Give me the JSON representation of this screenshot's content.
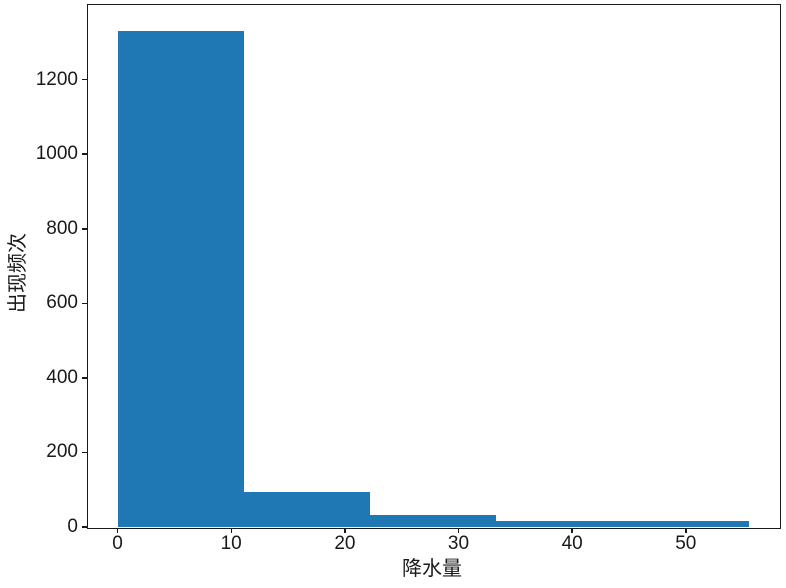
{
  "chart_data": {
    "type": "bar",
    "subtype": "histogram",
    "title": "",
    "xlabel": "降水量",
    "ylabel": "出现频次",
    "bin_edges": [
      0,
      11.11,
      22.22,
      33.33,
      44.44,
      55.56
    ],
    "values": [
      1330,
      95,
      33,
      16,
      16
    ],
    "xticks": [
      0,
      10,
      20,
      30,
      40,
      50
    ],
    "yticks": [
      0,
      200,
      400,
      600,
      800,
      1000,
      1200
    ],
    "xlim": [
      -2.6,
      58.2
    ],
    "ylim": [
      0,
      1400
    ],
    "grid": false,
    "legend_position": "none",
    "bar_color": "#1f77b4",
    "axis_color": "#1a1a1a",
    "text_color": "#1a1a1a",
    "background_color": "#ffffff"
  }
}
